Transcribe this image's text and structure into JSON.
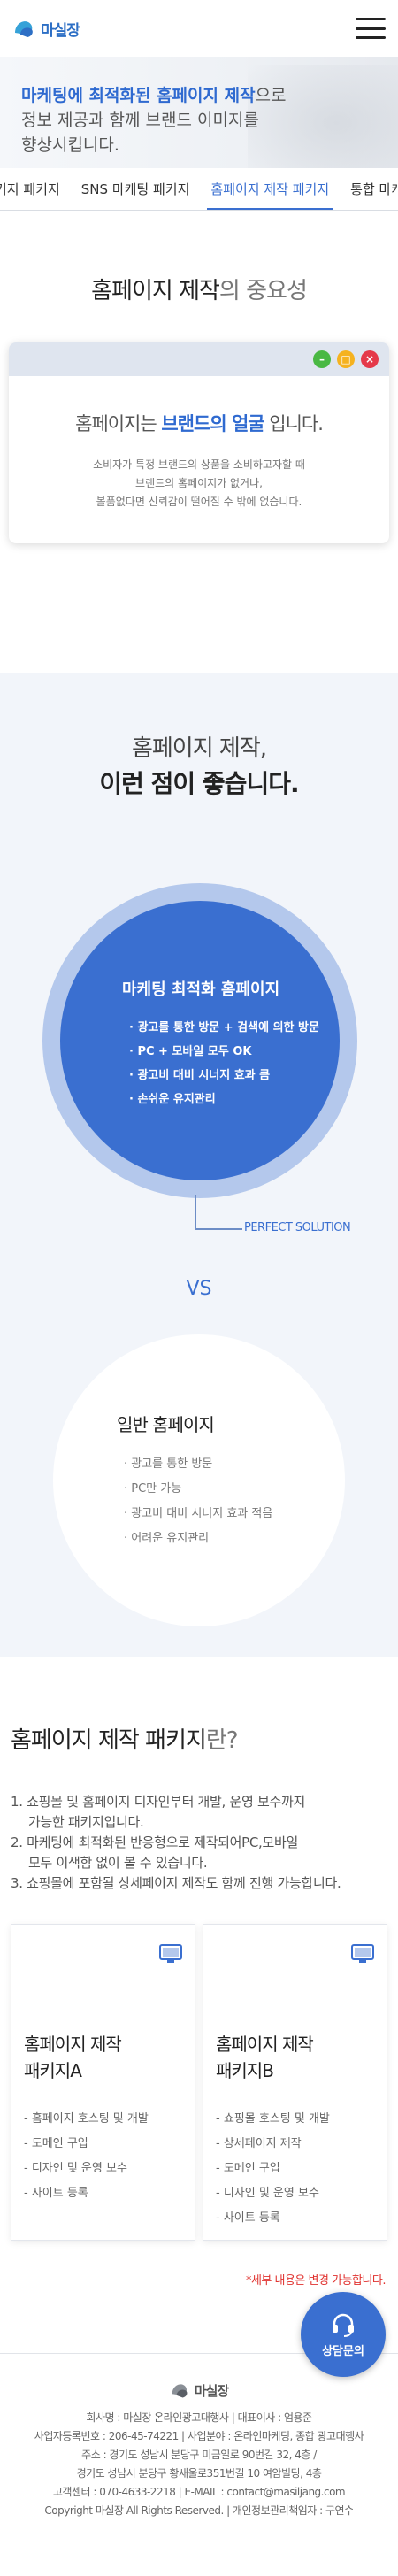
{
  "header": {
    "logo_text": "마실장",
    "menu_icon": "hamburger-menu-icon"
  },
  "hero": {
    "line1_highlight": "마케팅에 최적화된 홈페이지 제작",
    "line1_rest": "으로",
    "line2": "정보 제공과 함께 브랜드 이미지를",
    "line3": "향상시킵니다."
  },
  "tabs": [
    {
      "label": "키지 패키지"
    },
    {
      "label": "SNS 마케팅 패키지"
    },
    {
      "label": "홈페이지 제작 패키지",
      "active": true
    },
    {
      "label": "통합 마케팅"
    }
  ],
  "importance": {
    "title_strong": "홈페이지 제작",
    "title_light": "의 중요성",
    "card_buttons": [
      "–",
      "□",
      "×"
    ],
    "card_head_pre": "홈페이지는 ",
    "card_head_hl": "브랜드의 얼굴",
    "card_head_post": " 입니다.",
    "card_desc": [
      "소비자가 특정 브랜드의 상품을 소비하고자할 때",
      "브랜드의 홈페이지가 없거나,",
      "볼품없다면 신뢰감이 떨어질 수 밖에 없습니다."
    ]
  },
  "benefits": {
    "title_line1": "홈페이지 제작,",
    "title_line2": "이런 점이 좋습니다.",
    "marketing": {
      "title": "마케팅 최적화 홈페이지",
      "items": [
        "· 광고를 통한 방문 + 검색에 의한 방문",
        "· PC + 모바일 모두 OK",
        "· 광고비 대비 시너지 효과 큼",
        "· 손쉬운 유지관리"
      ]
    },
    "perfect_label": "PERFECT SOLUTION",
    "vs": "VS",
    "normal": {
      "title": "일반 홈페이지",
      "items": [
        "· 광고를 통한 방문",
        "· PC만 가능",
        "· 광고비 대비 시너지 효과 적음",
        "· 어려운 유지관리"
      ]
    }
  },
  "packages": {
    "title_strong": "홈페이지 제작 패키지",
    "title_light": "란?",
    "list": [
      {
        "text": "1. 쇼핑몰 및 홈페이지 디자인부터 개발, 운영 보수까지",
        "indent": false
      },
      {
        "text": "가능한 패키지입니다.",
        "indent": true
      },
      {
        "text": "2. 마케팅에 최적화된 반응형으로 제작되어PC,모바일",
        "indent": false
      },
      {
        "text": "모두 이색함 없이 볼 수 있습니다.",
        "indent": true
      },
      {
        "text": "3. 쇼핑몰에 포함될 상세페이지 제작도 함께 진행 가능합니다.",
        "indent": false
      }
    ],
    "cards": [
      {
        "name_line1": "홈페이지 제작",
        "name_line2": "패키지A",
        "items": [
          "- 홈페이지 호스팅 및 개발",
          "- 도메인 구입",
          "- 디자인 및 운영 보수",
          "- 사이트 등록"
        ]
      },
      {
        "name_line1": "홈페이지 제작",
        "name_line2": "패키지B",
        "items": [
          "- 쇼핑몰 호스팅 및 개발",
          "- 상세페이지 제작",
          "- 도메인 구입",
          "- 디자인 및 운영 보수",
          "- 사이트 등록"
        ]
      }
    ],
    "note": "*세부 내용은 변경 가능합니다."
  },
  "footer": {
    "logo_text": "마실장",
    "info": [
      "회사명 : 마실장 온라인광고대행사 | 대표이사 : 엄용준",
      "사업자등록번호 : 206-45-74221 | 사업분야 : 온라인마케팅, 종합 광고대행사",
      "주소 : 경기도 성남시 분당구 미금일로 90번길 32, 4층 /",
      "경기도 성남시 분당구 황새울로351번길 10 여암빌딩, 4층",
      "고객센터 : 070-4633-2218 | E-MAIL : contact@masiljang.com",
      "Copyright 마실장 All Rights Reserved. | 개인정보관리책임자 : 구연수"
    ],
    "contact_label": "상담문의"
  },
  "colors": {
    "accent": "#3a6fd0",
    "light_accent": "#b4c8ec",
    "section_bg": "#f2f5fa",
    "note_red": "#e0322f"
  }
}
